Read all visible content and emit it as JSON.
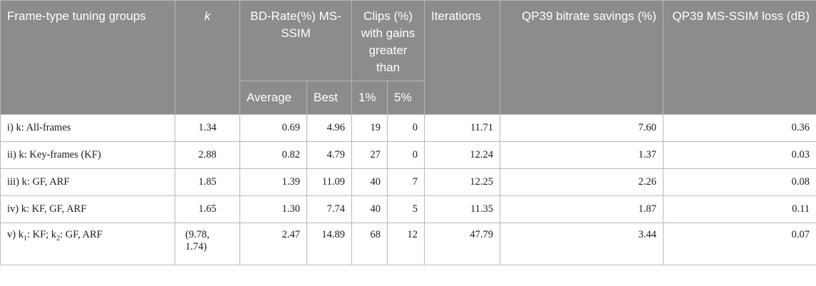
{
  "table": {
    "headers": {
      "group": "Frame-type tuning groups",
      "k": "k",
      "bdrate": "BD-Rate(%) MS-SSIM",
      "clips": "Clips (%) with gains greater than",
      "iterations": "Iterations",
      "qp39_bitrate": "QP39 bitrate savings (%)",
      "qp39_msssim": "QP39 MS-SSIM loss (dB)"
    },
    "subheaders": {
      "average": "Average",
      "best": "Best",
      "gt1": "1%",
      "gt5": "5%"
    },
    "rows": [
      {
        "group": "i) k: All-frames",
        "k": "1.34",
        "average": "0.69",
        "best": "4.96",
        "gt1": "19",
        "gt5": "0",
        "iterations": "11.71",
        "bitrate": "7.60",
        "loss": "0.36"
      },
      {
        "group": "ii) k: Key-frames (KF)",
        "k": "2.88",
        "average": "0.82",
        "best": "4.79",
        "gt1": "27",
        "gt5": "0",
        "iterations": "12.24",
        "bitrate": "1.37",
        "loss": "0.03"
      },
      {
        "group": "iii) k: GF, ARF",
        "k": "1.85",
        "average": "1.39",
        "best": "11.09",
        "gt1": "40",
        "gt5": "7",
        "iterations": "12.25",
        "bitrate": "2.26",
        "loss": "0.08"
      },
      {
        "group": "iv) k: KF, GF, ARF",
        "k": "1.65",
        "average": "1.30",
        "best": "7.74",
        "gt1": "40",
        "gt5": "5",
        "iterations": "11.35",
        "bitrate": "1.87",
        "loss": "0.11"
      },
      {
        "group_parts": {
          "prefix": "v) k",
          "sub1": "1",
          "mid": ": KF; k",
          "sub2": "2",
          "suffix": ": GF, ARF"
        },
        "k": "(9.78, 1.74)",
        "average": "2.47",
        "best": "14.89",
        "gt1": "68",
        "gt5": "12",
        "iterations": "47.79",
        "bitrate": "3.44",
        "loss": "0.07"
      }
    ]
  }
}
